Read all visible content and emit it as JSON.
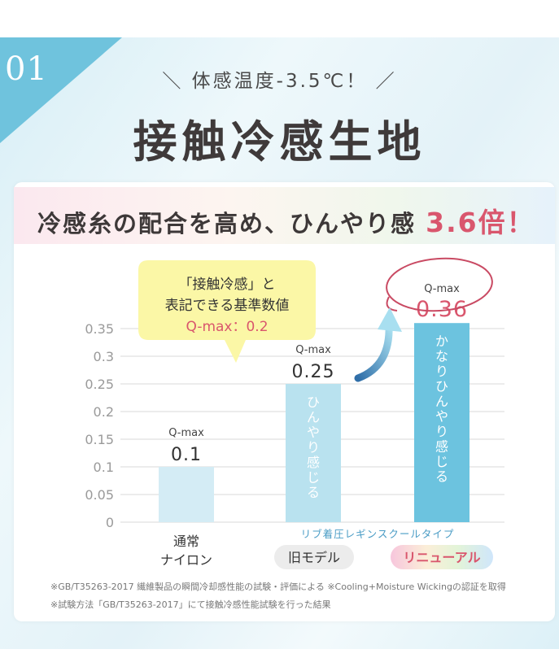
{
  "badge_number": "01",
  "subtitle": "＼ 体感温度-3.5℃！ ／",
  "title": "接触冷感生地",
  "headline": {
    "text": "冷感糸の配合を高め、ひんやり感 ",
    "highlight": "3.6倍！"
  },
  "callout": {
    "line1": "「接触冷感」と",
    "line2": "表記できる基準数値",
    "line3": "Q-max：0.2"
  },
  "series_caption": "リブ着圧レギンスクールタイプ",
  "bar_value_prefix": "Q-max",
  "colors": {
    "bar_normal": "#d4ecf5",
    "bar_old": "#b9e2ef",
    "bar_new": "#6cc3df",
    "accent_red": "#d9566d",
    "circle": "#c94a63",
    "callout_bg": "#fbf7a6",
    "pill_old": "#ececec"
  },
  "chart_data": {
    "type": "bar",
    "categories": [
      "通常\nナイロン",
      "旧モデル",
      "リニューアル"
    ],
    "values": [
      0.1,
      0.25,
      0.36
    ],
    "value_labels": [
      "0.1",
      "0.25",
      "0.36"
    ],
    "bar_texts": [
      "",
      "ひんやり感じる",
      "かなりひんやり感じる"
    ],
    "ylim": [
      0,
      0.35
    ],
    "yticks": [
      "0",
      "0.05",
      "0.1",
      "0.15",
      "0.2",
      "0.25",
      "0.3",
      "0.35"
    ],
    "grid": true,
    "xlabel": "",
    "ylabel": ""
  },
  "footnotes": [
    "※GB/T35263-2017 繊維製品の瞬間冷却感性能の試験・評価による ※Cooling+Moisture Wickingの認証を取得",
    "※試験方法「GB/T35263-2017」にて接触冷感性能試験を行った結果"
  ]
}
